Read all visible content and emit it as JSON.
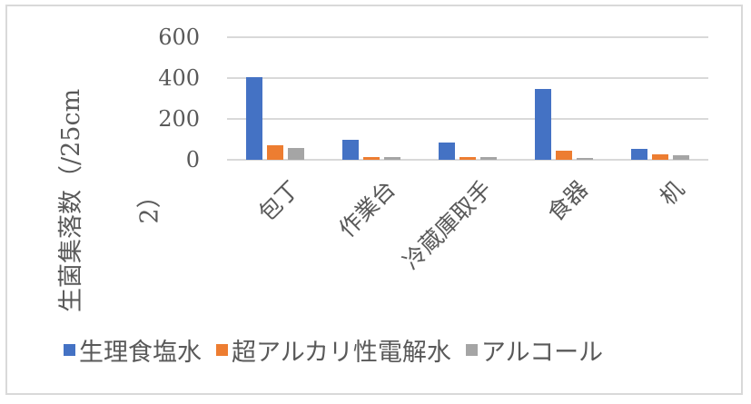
{
  "chart_data": {
    "type": "bar",
    "title": "",
    "xlabel": "",
    "ylabel": "生菌集落数（/25cm2）",
    "ylabel_line1": "生菌集落数（/25cm",
    "ylabel_line2": "2）",
    "ylim": [
      0,
      600
    ],
    "yticks": [
      "0",
      "200",
      "400",
      "600"
    ],
    "grid": true,
    "legend_position": "bottom",
    "categories": [
      "包丁",
      "作業台",
      "冷蔵庫取手",
      "食器",
      "机"
    ],
    "series": [
      {
        "name": "生理食塩水",
        "color": "#4472c4",
        "values": [
          405,
          98,
          84,
          347,
          53
        ]
      },
      {
        "name": "超アルカリ性電解水",
        "color": "#ed7d31",
        "values": [
          71,
          13,
          13,
          44,
          27
        ]
      },
      {
        "name": "アルコール",
        "color": "#a5a5a5",
        "values": [
          58,
          12,
          12,
          10,
          22
        ]
      }
    ]
  }
}
